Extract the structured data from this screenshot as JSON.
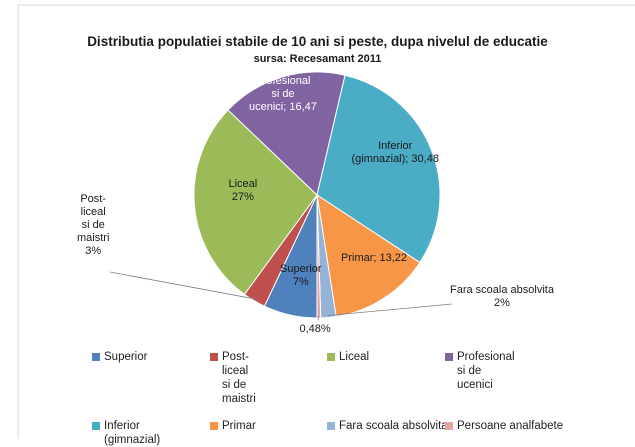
{
  "chart_data": {
    "type": "pie",
    "title": "Distributia populatiei stabile de 10 ani  si peste, dupa nivelul de educatie",
    "subtitle": "sursa: Recesamant 2011",
    "slices": [
      {
        "name": "Superior",
        "value": 7,
        "color": "#4f81bd",
        "data_label": [
          "Superior",
          "7%"
        ]
      },
      {
        "name": "Post-liceal si de maistri",
        "value": 3,
        "color": "#c0504d",
        "data_label": [
          "Post-",
          "liceal",
          "si de",
          "maistri",
          "3%"
        ]
      },
      {
        "name": "Liceal",
        "value": 27,
        "color": "#9bbb59",
        "data_label": [
          "Liceal",
          "27%"
        ]
      },
      {
        "name": "Profesional si de ucenici",
        "value": 16.47,
        "color": "#8064a2",
        "data_label": [
          "Profesional",
          "si de",
          "ucenici; 16,47"
        ]
      },
      {
        "name": "Inferior (gimnazial)",
        "value": 30.48,
        "color": "#4bacc6",
        "data_label": [
          "Inferior",
          "(gimnazial); 30,48"
        ]
      },
      {
        "name": "Primar",
        "value": 13.22,
        "color": "#f79646",
        "data_label": [
          "Primar; 13,22"
        ]
      },
      {
        "name": "Fara scoala absolvita",
        "value": 2,
        "color": "#95b3d7",
        "data_label": [
          "Fara scoala absolvita",
          "2%"
        ]
      },
      {
        "name": "Persoane analfabete",
        "value": 0.48,
        "color": "#e6a4a1",
        "data_label": [
          "0,48%"
        ]
      }
    ],
    "legend": {
      "placement": "bottom",
      "entries": [
        [
          "Superior"
        ],
        [
          "Post-",
          "liceal",
          "si de",
          "maistri"
        ],
        [
          "Liceal"
        ],
        [
          "Profesional",
          "si de",
          "ucenici"
        ],
        [
          "Inferior",
          "(gimnazial)"
        ],
        [
          "Primar"
        ],
        [
          "Fara scoala absolvita"
        ],
        [
          "Persoane analfabete"
        ]
      ]
    }
  }
}
